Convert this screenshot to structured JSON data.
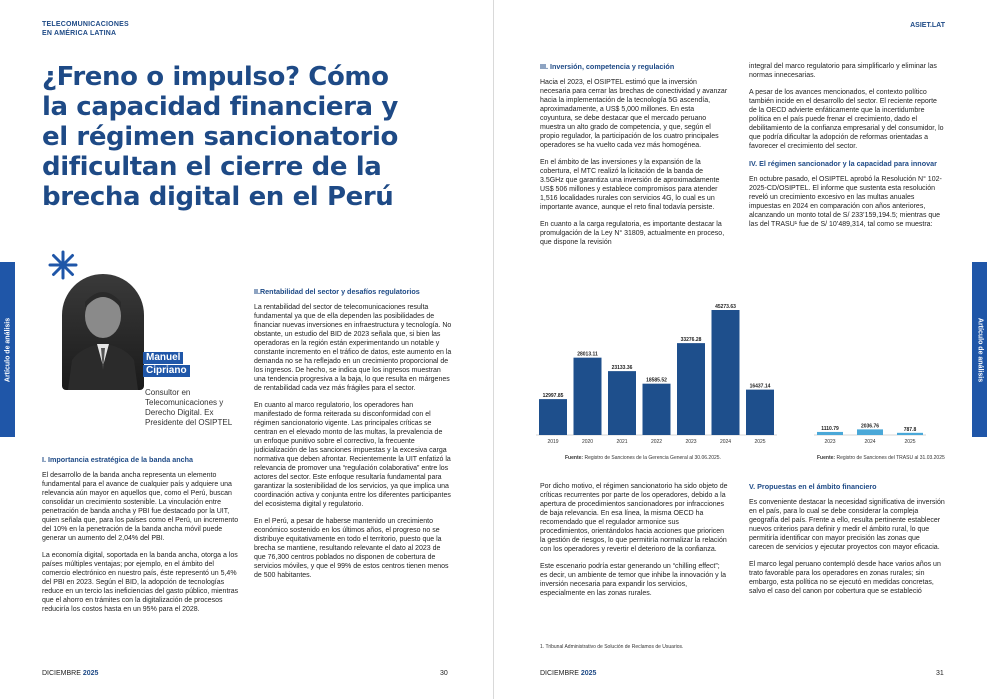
{
  "header": {
    "publication": "TELECOMUNICACIONES",
    "publication2": "EN AMÉRICA LATINA",
    "site": "ASIET.LAT"
  },
  "footer": {
    "month_left": "DICIEMBRE",
    "year_left": "2025",
    "page_left": "30",
    "month_right": "DICIEMBRE",
    "year_right": "2025",
    "page_right": "31"
  },
  "section_tab": "Artículo de análisis",
  "title": "¿Freno o impulso? Cómo la capacidad financiera y el régimen sancionatorio dificultan el cierre de la brecha digital en el Perú",
  "author": {
    "first_name": "Manuel",
    "last_name": "Cipriano",
    "role": "Consultor en Telecomunicaciones y Derecho Digital. Ex Presidente del OSIPTEL"
  },
  "colors": {
    "primary": "#1e4a86",
    "accent": "#1f56a8",
    "bar_dark": "#1e4f8c",
    "bar_light": "#4aa8d8"
  },
  "col1": {
    "heading": "I. Importancia estratégica de la banda ancha",
    "p1": "El desarrollo de la banda ancha representa un elemento fundamental para el avance de cualquier país y adquiere una relevancia aún mayor en aquellos que, como el Perú, buscan consolidar un crecimiento sostenible. La vinculación entre penetración de banda ancha y PBI fue destacado por la UIT, quien señala que, para los países como el Perú, un incremento del 10% en la penetración de la banda ancha móvil puede generar un aumento del 2,04% del PBI.",
    "p2": "La economía digital, soportada en la banda ancha, otorga a los países múltiples ventajas; por ejemplo, en el ámbito del comercio electrónico en nuestro país, éste representó un 5,4% del PBI en 2023. Según el BID, la adopción de tecnologías reduce en un tercio las ineficiencias del gasto público, mientras que el ahorro en trámites con la digitalización de procesos reduciría los costos hasta en un 95% para el 2028."
  },
  "col2": {
    "heading": "II.Rentabilidad del sector y desafíos regulatorios",
    "p1": "La rentabilidad del sector de telecomunicaciones resulta fundamental ya que de ella dependen las posibilidades de financiar nuevas inversiones en infraestructura y tecnología. No obstante, un estudio del BID de 2023 señala que, si bien las operadoras en la región están experimentando un notable y constante incremento en el tráfico de datos, este aumento en la demanda no se ha reflejado en un crecimiento proporcional de los ingresos. De hecho, se indica que los ingresos muestran una tendencia progresiva a la baja, lo que resulta en márgenes de rentabilidad cada vez más frágiles para el sector.",
    "p2": "En cuanto al marco regulatorio, los operadores han manifestado de forma reiterada su disconformidad con el régimen sancionatorio vigente. Las principales críticas se centran en el elevado monto de las multas, la prevalencia de un enfoque punitivo sobre el correctivo, la frecuente judicialización de las sanciones impuestas y la excesiva carga normativa que deben afrontar. Recientemente la UIT enfatizó la relevancia de promover una “regulación colaborativa” entre los actores del sector. Este enfoque resultaría fundamental para garantizar la sostenibilidad de los servicios, ya que implica una coordinación activa y conjunta entre los diferentes participantes del ecosistema digital y regulatorio.",
    "p3": "En el Perú, a pesar de haberse mantenido un crecimiento económico sostenido en los últimos años, el progreso no se distribuye equitativamente en todo el territorio, puesto que la brecha se mantiene, resultando relevante el dato al 2023 de que 76,300 centros poblados no disponen de cobertura de servicios móviles, y que el 99% de estos centros tienen menos de 500 habitantes."
  },
  "col3": {
    "heading": "III. Inversión, competencia y regulación",
    "p1": "Hacia el 2023, el OSIPTEL estimó que la inversión necesaria para cerrar las brechas de conectividad y avanzar hacia la implementación de la tecnología 5G ascendía, aproximadamente, a US$ 5,000 millones. En esta coyuntura, se debe destacar que el mercado peruano muestra un alto grado de competencia, y que, según el propio regulador, la participación de los cuatro principales operadores se ha vuelto cada vez más homogénea.",
    "p2": "En el ámbito de las inversiones y la expansión de la cobertura, el MTC realizó la licitación de la banda de 3.5GHz que garantiza una inversión de aproximadamente US$ 506 millones y establece compromisos para atender 1,516 localidades rurales con servicios 4G, lo cual es un importante avance, aunque el reto final todavía persiste.",
    "p3": "En cuanto a la carga regulatoria, es importante destacar la promulgación de la Ley N° 31809, actualmente en proceso, que dispone la revisión"
  },
  "col4": {
    "p1": "integral del marco regulatorio para simplificarlo y eliminar las normas innecesarias.",
    "p2": "A pesar de los avances mencionados, el contexto político también incide en el desarrollo del sector. El reciente reporte de la OECD advierte enfáticamente que la incertidumbre política en el país puede frenar el crecimiento, dado el debilitamiento de la confianza empresarial y del consumidor, lo que podría dificultar la adopción de reformas orientadas a favorecer el crecimiento del sector.",
    "heading": "IV. El régimen sancionador y la capacidad para innovar",
    "p3": "En octubre pasado, el OSIPTEL aprobó la Resolución N° 102-2025-CD/OSIPTEL. El informe que sustenta esta resolución reveló un crecimiento excesivo en las multas anuales impuestas en 2024 en comparación con años anteriores, alcanzando un monto total de S/ 233’159,194.5; mientras que las del TRASU¹ fue de S/ 10’489,314, tal como se muestra:"
  },
  "col5": {
    "p1": "Por dicho motivo, el régimen sancionatorio ha sido objeto de críticas recurrentes por parte de los operadores, debido a la apertura de procedimientos sancionadores por infracciones de baja relevancia. En esa línea, la misma OECD ha recomendado que el regulador armonice sus procedimientos, orientándolos hacia acciones que prioricen la gestión de riesgos, lo que permitiría normalizar la relación con los operadores y revertir el deterioro de la confianza.",
    "p2": "Este escenario podría estar generando un “chilling effect”; es decir, un ambiente de temor que inhibe la innovación y la inversión necesaria para expandir los servicios, especialmente en las zonas rurales."
  },
  "col6": {
    "heading": "V. Propuestas en el ámbito financiero",
    "p1": "Es conveniente destacar la necesidad significativa de inversión en el país, para lo cual se debe considerar la compleja geografía del país. Frente a ello, resulta pertinente establecer nuevos criterios para definir y medir el ámbito rural, lo que permitiría identificar con mayor precisión las zonas que carecen de servicios y ejecutar proyectos con mayor eficacia.",
    "p2": "El marco legal peruano contempló desde hace varios años un trato favorable para los operadores en zonas rurales; sin embargo, esta política no se ejecutó en medidas concretas, salvo el caso del canon por cobertura que se estableció"
  },
  "footnote": "1. Tribunal Administrativo de Solución de Reclamos de Usuarios.",
  "chart_data": [
    {
      "type": "bar",
      "categories": [
        "2019",
        "2020",
        "2021",
        "2022",
        "2023",
        "2024",
        "2025"
      ],
      "values": [
        12997.85,
        28013.11,
        23133.36,
        18585.52,
        33276.28,
        45273.63,
        16437.14
      ],
      "labels": [
        "12997.85",
        "28013.11",
        "23133.36",
        "18585.52",
        "33276.28",
        "45273.63",
        "16437.14"
      ],
      "source_label": "Fuente:",
      "source": "Registro de Sanciones de la Gerencia General al 30.06.2025.",
      "color": "#1e4f8c"
    },
    {
      "type": "bar",
      "categories": [
        "2023",
        "2024",
        "2025"
      ],
      "values": [
        1110.79,
        2036.76,
        787.8
      ],
      "labels": [
        "1110.79",
        "2036.76",
        "787.8"
      ],
      "source_label": "Fuente:",
      "source": "Registro de Sanciones del TRASU al 31.03.2025",
      "color": "#4aa8d8"
    }
  ]
}
